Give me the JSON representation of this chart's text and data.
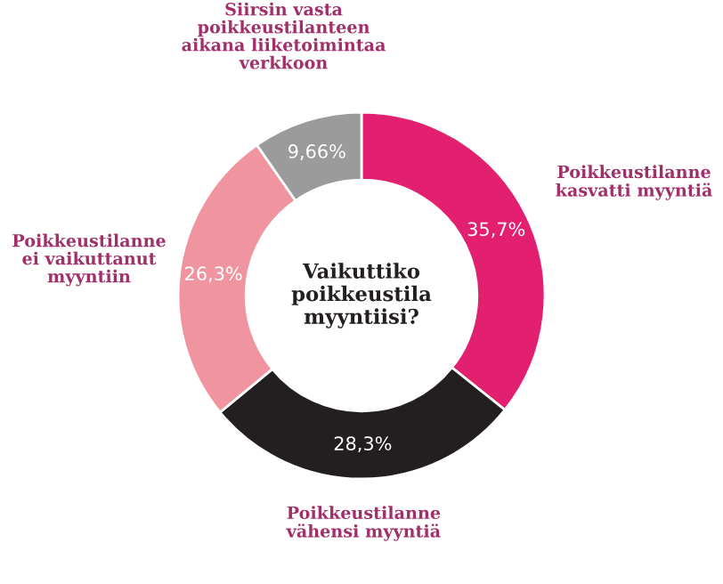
{
  "chart_data": {
    "type": "donut",
    "title": "Vaikuttiko\npoikkeustila\nmyyntiisi?",
    "categories": [
      "Poikkeustilanne\nkasvatti myyntiä",
      "Poikkeustilanne\nvähensi myyntiä",
      "Poikkeustilanne\nei vaikuttanut\nmyyntiin",
      "Siirsin vasta\npoikkeustilanteen\naikana liiketoimintaa\nverkkoon"
    ],
    "values": [
      35.7,
      28.3,
      26.3,
      9.66
    ],
    "colors": [
      "#e3206f",
      "#231f20",
      "#f0959f",
      "#9b9b9b"
    ],
    "value_labels": [
      "35,7%",
      "28,3%",
      "26,3%",
      "9,66%"
    ],
    "legend": false
  }
}
